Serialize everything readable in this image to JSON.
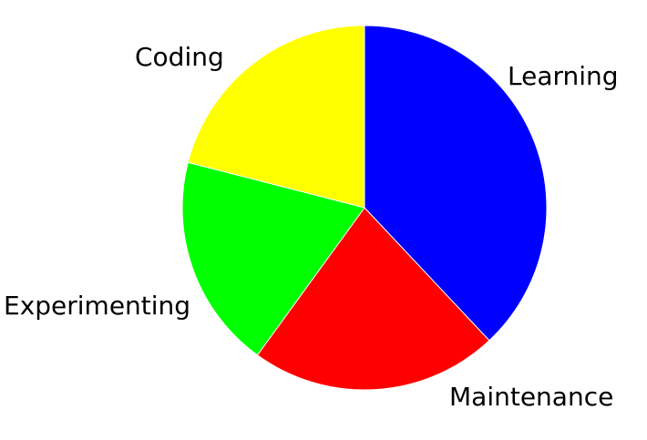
{
  "chart_data": {
    "type": "pie",
    "start": "top",
    "direction": "clockwise",
    "slices": [
      {
        "label": "Learning",
        "value": 38,
        "color": "#0000ff"
      },
      {
        "label": "Maintenance",
        "value": 22,
        "color": "#ff0000"
      },
      {
        "label": "Experimenting",
        "value": 19,
        "color": "#00ff00"
      },
      {
        "label": "Coding",
        "value": 21,
        "color": "#ffff00"
      }
    ]
  }
}
